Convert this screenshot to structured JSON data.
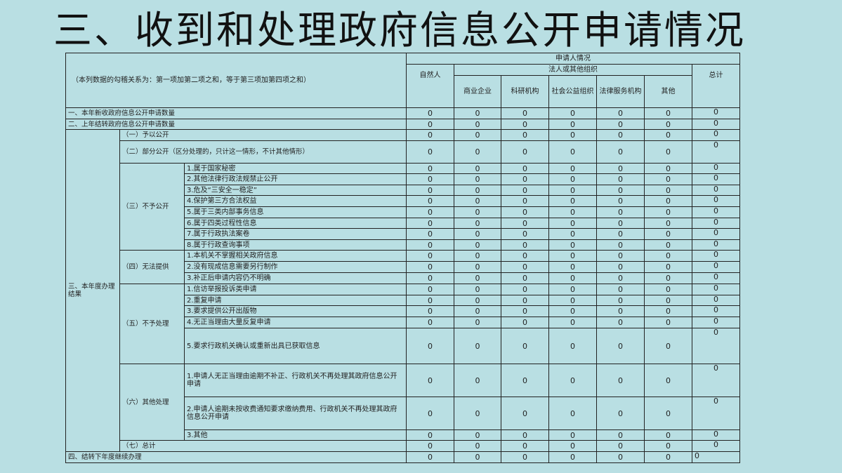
{
  "title": "三、收到和处理政府信息公开申请情况",
  "table": {
    "note": "（本列数据的勾稽关系为：第一项加第二项之和，等于第三项加第四项之和）",
    "applicant_header": "申请人情况",
    "natural_person": "自然人",
    "legal_header": "法人或其他组织",
    "org_columns": [
      "商业企业",
      "科研机构",
      "社会公益组织",
      "法律服务机构",
      "其他"
    ],
    "total_header": "总计",
    "rows": [
      {
        "l1": "一、本年新收政府信息公开申请数量",
        "l2": "",
        "l3": "",
        "values": [
          0,
          0,
          0,
          0,
          0,
          0,
          0
        ]
      },
      {
        "l1": "二、上年结转政府信息公开申请数量",
        "l2": "",
        "l3": "",
        "values": [
          0,
          0,
          0,
          0,
          0,
          0,
          0
        ]
      },
      {
        "l1": "三、本年度办理结果",
        "l2": "（一）予以公开",
        "l3": "",
        "values": [
          0,
          0,
          0,
          0,
          0,
          0,
          0
        ]
      },
      {
        "l1": "三、本年度办理结果",
        "l2": "（二）部分公开（区分处理的，只计这一情形，不计其他情形）",
        "l3": "",
        "values": [
          0,
          0,
          0,
          0,
          0,
          0,
          0
        ]
      },
      {
        "l1": "三、本年度办理结果",
        "l2": "（三）不予公开",
        "l3": "1.属于国家秘密",
        "values": [
          0,
          0,
          0,
          0,
          0,
          0,
          0
        ]
      },
      {
        "l1": "三、本年度办理结果",
        "l2": "（三）不予公开",
        "l3": "2.其他法律行政法规禁止公开",
        "values": [
          0,
          0,
          0,
          0,
          0,
          0,
          0
        ]
      },
      {
        "l1": "三、本年度办理结果",
        "l2": "（三）不予公开",
        "l3": "3.危及“三安全一稳定”",
        "values": [
          0,
          0,
          0,
          0,
          0,
          0,
          0
        ]
      },
      {
        "l1": "三、本年度办理结果",
        "l2": "（三）不予公开",
        "l3": "4.保护第三方合法权益",
        "values": [
          0,
          0,
          0,
          0,
          0,
          0,
          0
        ]
      },
      {
        "l1": "三、本年度办理结果",
        "l2": "（三）不予公开",
        "l3": "5.属于三类内部事务信息",
        "values": [
          0,
          0,
          0,
          0,
          0,
          0,
          0
        ]
      },
      {
        "l1": "三、本年度办理结果",
        "l2": "（三）不予公开",
        "l3": "6.属于四类过程性信息",
        "values": [
          0,
          0,
          0,
          0,
          0,
          0,
          0
        ]
      },
      {
        "l1": "三、本年度办理结果",
        "l2": "（三）不予公开",
        "l3": "7.属于行政执法案卷",
        "values": [
          0,
          0,
          0,
          0,
          0,
          0,
          0
        ]
      },
      {
        "l1": "三、本年度办理结果",
        "l2": "（三）不予公开",
        "l3": "8.属于行政查询事项",
        "values": [
          0,
          0,
          0,
          0,
          0,
          0,
          0
        ]
      },
      {
        "l1": "三、本年度办理结果",
        "l2": "（四）无法提供",
        "l3": "1.本机关不掌握相关政府信息",
        "values": [
          0,
          0,
          0,
          0,
          0,
          0,
          0
        ]
      },
      {
        "l1": "三、本年度办理结果",
        "l2": "（四）无法提供",
        "l3": "2.没有现成信息需要另行制作",
        "values": [
          0,
          0,
          0,
          0,
          0,
          0,
          0
        ]
      },
      {
        "l1": "三、本年度办理结果",
        "l2": "（四）无法提供",
        "l3": "3.补正后申请内容仍不明确",
        "values": [
          0,
          0,
          0,
          0,
          0,
          0,
          0
        ]
      },
      {
        "l1": "三、本年度办理结果",
        "l2": "（五）不予处理",
        "l3": "1.信访举报投诉类申请",
        "values": [
          0,
          0,
          0,
          0,
          0,
          0,
          0
        ]
      },
      {
        "l1": "三、本年度办理结果",
        "l2": "（五）不予处理",
        "l3": "2.重复申请",
        "values": [
          0,
          0,
          0,
          0,
          0,
          0,
          0
        ]
      },
      {
        "l1": "三、本年度办理结果",
        "l2": "（五）不予处理",
        "l3": "3.要求提供公开出版物",
        "values": [
          0,
          0,
          0,
          0,
          0,
          0,
          0
        ]
      },
      {
        "l1": "三、本年度办理结果",
        "l2": "（五）不予处理",
        "l3": "4.无正当理由大量反复申请",
        "values": [
          0,
          0,
          0,
          0,
          0,
          0,
          0
        ]
      },
      {
        "l1": "三、本年度办理结果",
        "l2": "（五）不予处理",
        "l3": "5.要求行政机关确认或重新出具已获取信息",
        "values": [
          0,
          0,
          0,
          0,
          0,
          0,
          0
        ]
      },
      {
        "l1": "三、本年度办理结果",
        "l2": "（六）其他处理",
        "l3": "1.申请人无正当理由逾期不补正、行政机关不再处理其政府信息公开申请",
        "values": [
          0,
          0,
          0,
          0,
          0,
          0,
          0
        ]
      },
      {
        "l1": "三、本年度办理结果",
        "l2": "（六）其他处理",
        "l3": "2.申请人逾期未按收费通知要求缴纳费用、行政机关不再处理其政府信息公开申请",
        "values": [
          0,
          0,
          0,
          0,
          0,
          0,
          0
        ]
      },
      {
        "l1": "三、本年度办理结果",
        "l2": "（六）其他处理",
        "l3": "3.其他",
        "values": [
          0,
          0,
          0,
          0,
          0,
          0,
          0
        ]
      },
      {
        "l1": "三、本年度办理结果",
        "l2": "（七）总计",
        "l3": "",
        "values": [
          0,
          0,
          0,
          0,
          0,
          0,
          0
        ]
      },
      {
        "l1": "四、结转下年度继续办理",
        "l2": "",
        "l3": "",
        "values": [
          0,
          0,
          0,
          0,
          0,
          0,
          0
        ]
      }
    ]
  }
}
